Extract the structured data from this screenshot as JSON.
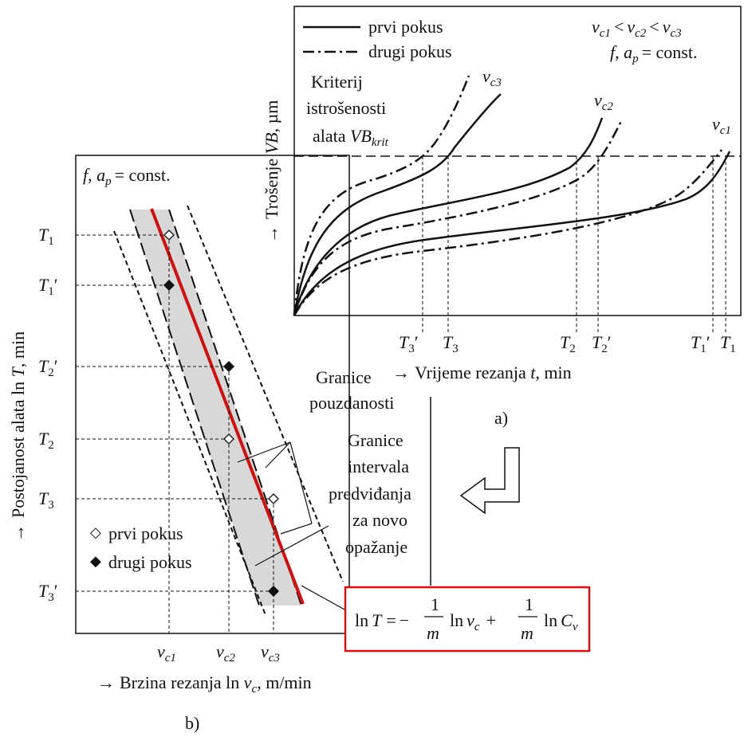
{
  "panel_a": {
    "legend": {
      "first_test": "prvi pokus",
      "second_test": "drugi pokus"
    },
    "relation": {
      "v": "v",
      "c1": "c1",
      "c2": "c2",
      "c3": "c3",
      "lt": "<"
    },
    "const_label": {
      "f": "f",
      "ap": "a",
      "p": "p",
      "rest": "= const."
    },
    "criterion": {
      "line1": "Kriterij",
      "line2": "istrošenosti",
      "line3": "alata ",
      "vb": "VB",
      "krit": "krit"
    },
    "y_axis": {
      "arrow": "→",
      "label_a": "Trošenje ",
      "label_vb": "VB",
      "label_b": ", µm"
    },
    "x_axis": {
      "arrow": "→",
      "label_a": "Vrijeme rezanja ",
      "label_t": "t",
      "label_b": ", min"
    },
    "curve_labels": [
      "c3",
      "c2",
      "c1"
    ],
    "time_ticks": {
      "T": "T",
      "sub": [
        "3",
        "3",
        "2",
        "2",
        "1",
        "1"
      ],
      "prime": "′"
    },
    "caption": "a)"
  },
  "panel_b": {
    "const_label": {
      "f": "f",
      "ap": "a",
      "p": "p",
      "rest": "= const."
    },
    "y_axis": {
      "arrow": "→",
      "label_a": "Postojanost alata ln ",
      "label_t": "T",
      "label_b": ", min"
    },
    "x_axis": {
      "arrow": "→",
      "label_a": "Brzina rezanja ln ",
      "label_v": "v",
      "label_sub": "c",
      "label_b": ", m/min"
    },
    "y_ticks": {
      "T": "T",
      "sub": [
        "1",
        "1",
        "2",
        "2",
        "3",
        "3"
      ],
      "prime": "′"
    },
    "x_ticks": {
      "v": "v",
      "sub": [
        "c1",
        "c2",
        "c3"
      ]
    },
    "legend": {
      "first_test": "prvi pokus",
      "second_test": "drugi pokus",
      "open_marker": "◇",
      "filled_marker": "◆"
    },
    "confidence_label": [
      "Granice",
      "pouzdanosti"
    ],
    "prediction_label": [
      "Granice",
      "intervala",
      "predviđanja",
      "za novo",
      "opažanje"
    ],
    "caption": "b)"
  },
  "formula": {
    "ln": "ln",
    "T": "T",
    "eq": "=",
    "minus": "−",
    "plus": "+",
    "one": "1",
    "m": "m",
    "v": "v",
    "c": "c",
    "C": "C",
    "csub": "v"
  },
  "colors": {
    "fit_line": "#cc1111",
    "band": "#d8d8d8",
    "formula_border": "#cc1111"
  }
}
